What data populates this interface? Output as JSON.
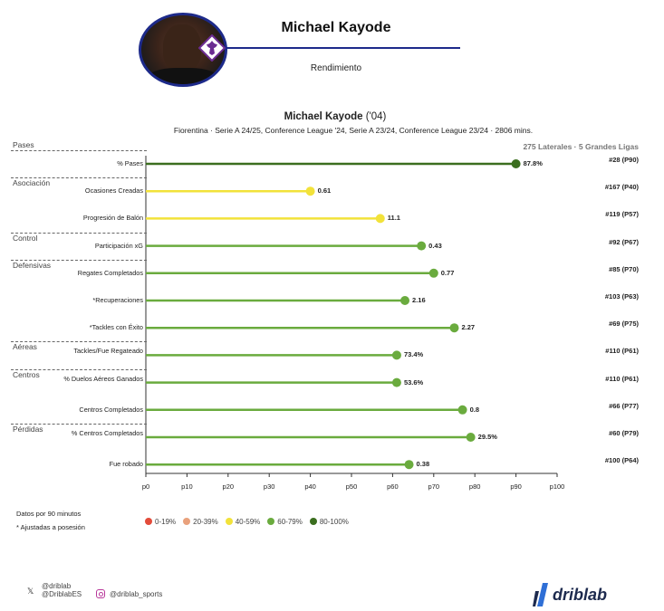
{
  "header": {
    "player_name": "Michael Kayode",
    "subtitle": "Rendimiento"
  },
  "chart_data": {
    "type": "lollipop",
    "title_name": "Michael Kayode",
    "title_year": "('04)",
    "subtitle": "Fiorentina · Serie A 24/25, Conference League '24, Serie A 23/24, Conference League 23/24 · 2806 mins.",
    "comparison": "275 Laterales · 5 Grandes Ligas",
    "x_axis": {
      "ticks": [
        "p0",
        "p10",
        "p20",
        "p30",
        "p40",
        "p50",
        "p60",
        "p70",
        "p80",
        "p90",
        "p100"
      ],
      "range": [
        0,
        100
      ]
    },
    "categories": [
      {
        "name": "Pases",
        "start": 0
      },
      {
        "name": "Asociación",
        "start": 1
      },
      {
        "name": "Control",
        "start": 3
      },
      {
        "name": "Defensivas",
        "start": 4
      },
      {
        "name": "Aéreas",
        "start": 7
      },
      {
        "name": "Centros",
        "start": 8
      },
      {
        "name": "Pérdidas",
        "start": 10
      }
    ],
    "metrics": [
      {
        "label": "% Pases",
        "value": "87.8%",
        "percentile": 90,
        "rank": "#28 (P90)",
        "color": "#3b6e1f"
      },
      {
        "label": "Ocasiones Creadas",
        "value": "0.61",
        "percentile": 40,
        "rank": "#167 (P40)",
        "color": "#f2e23a"
      },
      {
        "label": "Progresión de Balón",
        "value": "11.1",
        "percentile": 57,
        "rank": "#119 (P57)",
        "color": "#f2e23a"
      },
      {
        "label": "Participación xG",
        "value": "0.43",
        "percentile": 67,
        "rank": "#92 (P67)",
        "color": "#6aab3e"
      },
      {
        "label": "Regates Completados",
        "value": "0.77",
        "percentile": 70,
        "rank": "#85 (P70)",
        "color": "#6aab3e"
      },
      {
        "label": "*Recuperaciones",
        "value": "2.16",
        "percentile": 63,
        "rank": "#103 (P63)",
        "color": "#6aab3e"
      },
      {
        "label": "*Tackles con Éxito",
        "value": "2.27",
        "percentile": 75,
        "rank": "#69 (P75)",
        "color": "#6aab3e"
      },
      {
        "label": "Tackles/Fue Regateado",
        "value": "73.4%",
        "percentile": 61,
        "rank": "#110 (P61)",
        "color": "#6aab3e"
      },
      {
        "label": "% Duelos Aéreos Ganados",
        "value": "53.6%",
        "percentile": 61,
        "rank": "#110 (P61)",
        "color": "#6aab3e"
      },
      {
        "label": "Centros Completados",
        "value": "0.8",
        "percentile": 77,
        "rank": "#66 (P77)",
        "color": "#6aab3e"
      },
      {
        "label": "% Centros Completados",
        "value": "29.5%",
        "percentile": 79,
        "rank": "#60 (P79)",
        "color": "#6aab3e"
      },
      {
        "label": "Fue robado",
        "value": "0.38",
        "percentile": 64,
        "rank": "#100 (P64)",
        "color": "#6aab3e"
      }
    ],
    "legend": [
      {
        "label": "0-19%",
        "color": "#e34b3a"
      },
      {
        "label": "20-39%",
        "color": "#e9a17c"
      },
      {
        "label": "40-59%",
        "color": "#f2e23a"
      },
      {
        "label": "60-79%",
        "color": "#6aab3e"
      },
      {
        "label": "80-100%",
        "color": "#3b6e1f"
      }
    ]
  },
  "notes": {
    "per90": "Datos por 90 minutos",
    "adjusted": "* Ajustadas a posesión"
  },
  "footer": {
    "x_handle_1": "@driblab",
    "x_handle_2": "@DriblabES",
    "instagram_handle": "@driblab_sports",
    "brand": "driblab"
  },
  "colors": {
    "accent": "#1d2a8a",
    "badge_purple": "#6b2c91"
  }
}
